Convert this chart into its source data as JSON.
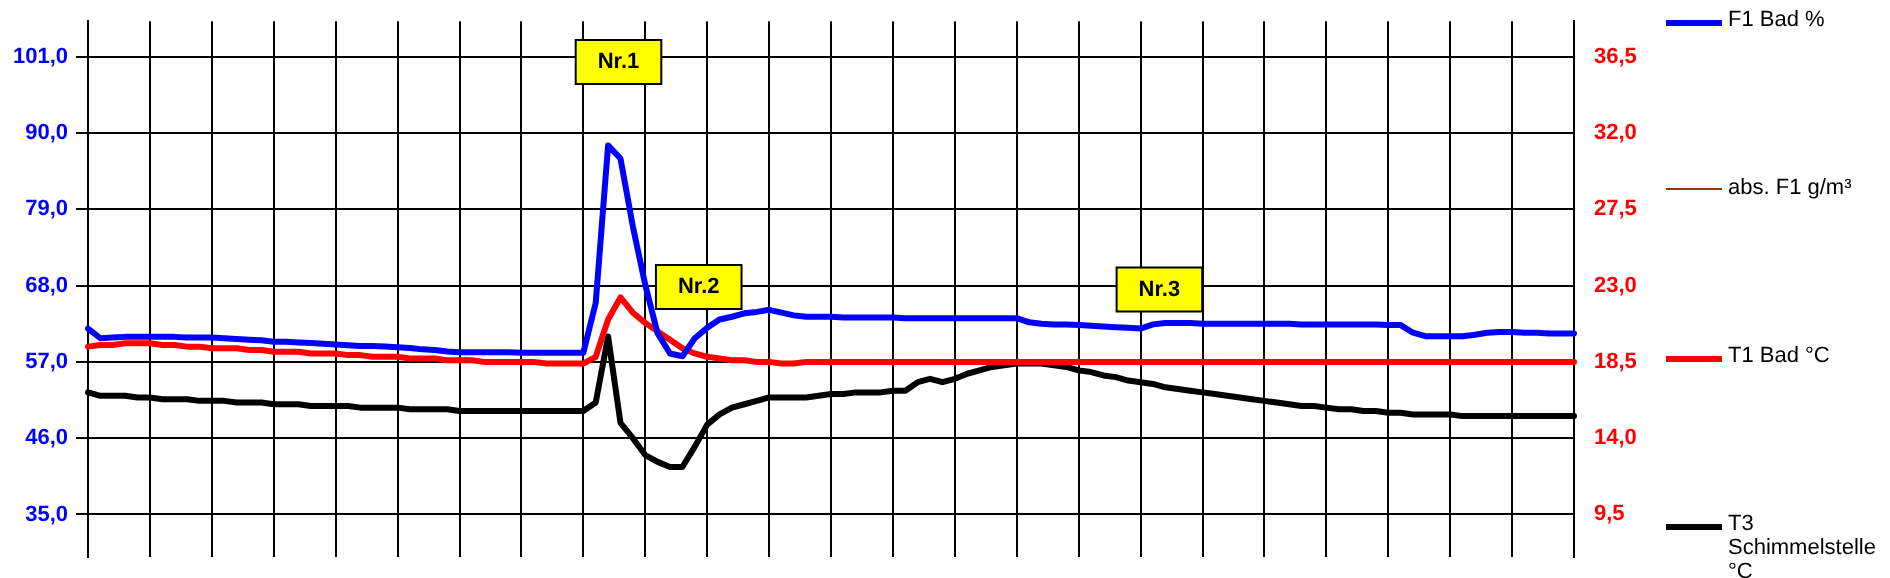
{
  "chart_data": {
    "type": "line",
    "categories": [
      null,
      null,
      null,
      null,
      null,
      null,
      null,
      null,
      null,
      null,
      null,
      null,
      null,
      null,
      null,
      null,
      null,
      null,
      null,
      null,
      null,
      null,
      null,
      null,
      null,
      null,
      null,
      null,
      null,
      null,
      null,
      null,
      null,
      null,
      null,
      null,
      null,
      null,
      null,
      null,
      null,
      null,
      null,
      null,
      null,
      null,
      null,
      null,
      null,
      null,
      null,
      null,
      null,
      null,
      null,
      null,
      null,
      null,
      null,
      null,
      null,
      null,
      null,
      null,
      null,
      null,
      null,
      null,
      null,
      null,
      null,
      null,
      null,
      null,
      null,
      null,
      null,
      null,
      null,
      null,
      null,
      null,
      null,
      null,
      null,
      null,
      null,
      null,
      null,
      null,
      null,
      null,
      null,
      null,
      null,
      null,
      null,
      null,
      null,
      null,
      null,
      null,
      null,
      null,
      null,
      null,
      null,
      null,
      null,
      null,
      null,
      null,
      null,
      null,
      null,
      null,
      null,
      null,
      null,
      null,
      null
    ],
    "ylim": [
      28.9,
      106.1
    ],
    "yticks": [
      {
        "value": 35,
        "label": "35,0"
      },
      {
        "value": 46,
        "label": "46,0"
      },
      {
        "value": 57,
        "label": "57,0"
      },
      {
        "value": 68,
        "label": "68,0"
      },
      {
        "value": 79,
        "label": "79,0"
      },
      {
        "value": 90,
        "label": "90,0"
      },
      {
        "value": 101,
        "label": "101,0"
      }
    ],
    "y2lim": [
      7.0,
      38.6
    ],
    "y2ticks": [
      {
        "value": 9.5,
        "label": "9,5"
      },
      {
        "value": 14,
        "label": "14,0"
      },
      {
        "value": 18.5,
        "label": "18,5"
      },
      {
        "value": 23,
        "label": "23,0"
      },
      {
        "value": 27.5,
        "label": "27,5"
      },
      {
        "value": 32,
        "label": "32,0"
      },
      {
        "value": 36.5,
        "label": "36,5"
      }
    ],
    "tick_labels": "y",
    "grid": true,
    "legend": "right",
    "marker": "none",
    "line_style": "solid",
    "series": [
      {
        "name": "F1 Bad %",
        "color": "#0000ff",
        "axis": "y",
        "values": [
          61.8,
          60.4,
          60.5,
          60.6,
          60.6,
          60.6,
          60.6,
          60.6,
          60.5,
          60.5,
          60.5,
          60.4,
          60.3,
          60.2,
          60.1,
          59.9,
          59.9,
          59.8,
          59.7,
          59.6,
          59.5,
          59.4,
          59.3,
          59.3,
          59.2,
          59.1,
          59.0,
          58.8,
          58.7,
          58.5,
          58.4,
          58.4,
          58.4,
          58.4,
          58.4,
          58.3,
          58.3,
          58.3,
          58.3,
          58.3,
          58.3,
          65.5,
          88.2,
          86.3,
          76.5,
          68.1,
          61.1,
          58.2,
          57.8,
          60.4,
          61.9,
          63.1,
          63.5,
          64.0,
          64.2,
          64.5,
          64.1,
          63.7,
          63.5,
          63.5,
          63.5,
          63.4,
          63.4,
          63.4,
          63.4,
          63.4,
          63.3,
          63.3,
          63.3,
          63.3,
          63.3,
          63.3,
          63.3,
          63.3,
          63.3,
          63.3,
          62.7,
          62.5,
          62.4,
          62.4,
          62.3,
          62.2,
          62.1,
          62.0,
          61.9,
          61.8,
          62.4,
          62.6,
          62.6,
          62.6,
          62.5,
          62.5,
          62.5,
          62.5,
          62.5,
          62.5,
          62.5,
          62.5,
          62.4,
          62.4,
          62.4,
          62.4,
          62.4,
          62.4,
          62.4,
          62.3,
          62.3,
          61.2,
          60.7,
          60.7,
          60.7,
          60.7,
          60.9,
          61.2,
          61.3,
          61.3,
          61.2,
          61.2,
          61.1,
          61.1,
          61.1
        ]
      },
      {
        "name": "abs. F1 g/m³",
        "color": "#993300",
        "axis": "y2",
        "values": [
          null,
          null,
          null,
          null,
          null,
          null,
          null,
          null,
          null,
          null,
          null,
          null,
          null,
          null,
          null,
          null,
          null,
          null,
          null,
          null,
          null,
          null,
          null,
          null,
          null,
          null,
          null,
          null,
          null,
          null,
          null,
          null,
          null,
          null,
          null,
          null,
          null,
          null,
          null,
          null,
          null,
          null,
          null,
          null,
          null,
          null,
          null,
          null,
          null,
          null,
          null,
          null,
          null,
          null,
          null,
          null,
          null,
          null,
          null,
          null,
          null,
          null,
          null,
          null,
          null,
          null,
          null,
          null,
          null,
          null,
          null,
          null,
          null,
          null,
          null,
          null,
          null,
          null,
          null,
          null,
          null,
          null,
          null,
          null,
          null,
          null,
          null,
          null,
          null,
          null,
          null,
          null,
          null,
          null,
          null,
          null,
          null,
          null,
          null,
          null,
          null,
          null,
          null,
          null,
          null,
          null,
          null,
          null,
          null,
          null,
          null,
          null,
          null,
          null,
          null,
          null,
          null,
          null,
          null,
          null,
          null
        ]
      },
      {
        "name": "T1 Bad °C",
        "color": "#ff0000",
        "axis": "y2",
        "values": [
          19.4,
          19.5,
          19.5,
          19.6,
          19.6,
          19.6,
          19.5,
          19.5,
          19.4,
          19.4,
          19.3,
          19.3,
          19.3,
          19.2,
          19.2,
          19.1,
          19.1,
          19.1,
          19.0,
          19.0,
          19.0,
          18.9,
          18.9,
          18.8,
          18.8,
          18.8,
          18.7,
          18.7,
          18.7,
          18.6,
          18.6,
          18.6,
          18.5,
          18.5,
          18.5,
          18.5,
          18.5,
          18.4,
          18.4,
          18.4,
          18.4,
          18.8,
          21.0,
          22.3,
          21.4,
          20.8,
          20.3,
          19.8,
          19.3,
          19.0,
          18.8,
          18.7,
          18.6,
          18.6,
          18.5,
          18.5,
          18.4,
          18.4,
          18.5,
          18.5,
          18.5,
          18.5,
          18.5,
          18.5,
          18.5,
          18.5,
          18.5,
          18.5,
          18.5,
          18.5,
          18.5,
          18.5,
          18.5,
          18.5,
          18.5,
          18.5,
          18.5,
          18.5,
          18.5,
          18.5,
          18.5,
          18.5,
          18.5,
          18.5,
          18.5,
          18.5,
          18.5,
          18.5,
          18.5,
          18.5,
          18.5,
          18.5,
          18.5,
          18.5,
          18.5,
          18.5,
          18.5,
          18.5,
          18.5,
          18.5,
          18.5,
          18.5,
          18.5,
          18.5,
          18.5,
          18.5,
          18.5,
          18.5,
          18.5,
          18.5,
          18.5,
          18.5,
          18.5,
          18.5,
          18.5,
          18.5,
          18.5,
          18.5,
          18.5,
          18.5,
          18.5
        ]
      },
      {
        "name": "T3 Schimmelstelle °C",
        "color": "#000000",
        "axis": "y2",
        "values": [
          16.7,
          16.5,
          16.5,
          16.5,
          16.4,
          16.4,
          16.3,
          16.3,
          16.3,
          16.2,
          16.2,
          16.2,
          16.1,
          16.1,
          16.1,
          16.0,
          16.0,
          16.0,
          15.9,
          15.9,
          15.9,
          15.9,
          15.8,
          15.8,
          15.8,
          15.8,
          15.7,
          15.7,
          15.7,
          15.7,
          15.6,
          15.6,
          15.6,
          15.6,
          15.6,
          15.6,
          15.6,
          15.6,
          15.6,
          15.6,
          15.6,
          16.1,
          20.0,
          14.9,
          14.0,
          13.0,
          12.6,
          12.3,
          12.3,
          13.5,
          14.8,
          15.4,
          15.8,
          16.0,
          16.2,
          16.4,
          16.4,
          16.4,
          16.4,
          16.5,
          16.6,
          16.6,
          16.7,
          16.7,
          16.7,
          16.8,
          16.8,
          17.3,
          17.5,
          17.3,
          17.5,
          17.8,
          18.0,
          18.2,
          18.3,
          18.4,
          18.4,
          18.4,
          18.3,
          18.2,
          18.0,
          17.9,
          17.7,
          17.6,
          17.4,
          17.3,
          17.2,
          17.0,
          16.9,
          16.8,
          16.7,
          16.6,
          16.5,
          16.4,
          16.3,
          16.2,
          16.1,
          16.0,
          15.9,
          15.9,
          15.8,
          15.7,
          15.7,
          15.6,
          15.6,
          15.5,
          15.5,
          15.4,
          15.4,
          15.4,
          15.4,
          15.3,
          15.3,
          15.3,
          15.3,
          15.3,
          15.3,
          15.3,
          15.3,
          15.3,
          15.3
        ]
      }
    ],
    "annotations": [
      "Nr.1",
      "Nr.2",
      "Nr.3"
    ]
  }
}
